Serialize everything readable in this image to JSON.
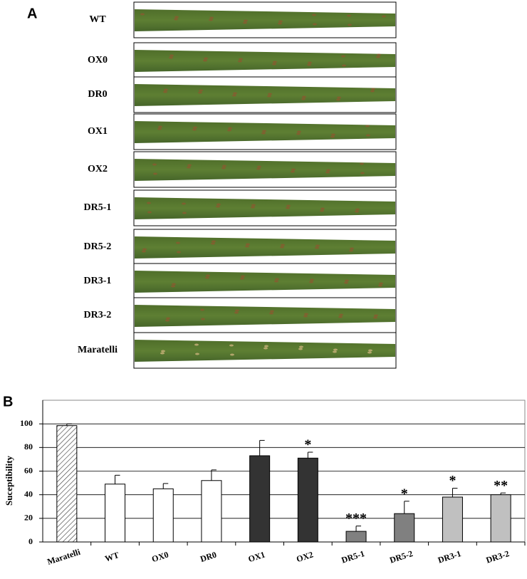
{
  "panel_a": {
    "label": "A",
    "rows": [
      "WT",
      "OX0",
      "DR0",
      "OX1",
      "OX2",
      "DR5-1",
      "DR5-2",
      "DR3-1",
      "DR3-2",
      "Maratelli"
    ]
  },
  "chart_data": {
    "type": "bar",
    "panel_label": "B",
    "y_label": "Suceptibility",
    "categories": [
      "Maratelli",
      "WT",
      "OX0",
      "DR0",
      "OX1",
      "OX2",
      "DR5-1",
      "DR5-2",
      "DR3-1",
      "DR3-2"
    ],
    "values": [
      98.5,
      49,
      45,
      52,
      73,
      71,
      9,
      24,
      38,
      40
    ],
    "errors": [
      1.5,
      7.5,
      4.5,
      9,
      13,
      5,
      4.5,
      10.5,
      7.5,
      1.5
    ],
    "annotations": [
      null,
      null,
      null,
      null,
      null,
      "*",
      "***",
      "*",
      "*",
      "**"
    ],
    "colors": [
      "#ffffff",
      "#ffffff",
      "#ffffff",
      "#ffffff",
      "#333333",
      "#333333",
      "#808080",
      "#808080",
      "#c0c0c0",
      "#c0c0c0"
    ],
    "hatch": [
      true,
      false,
      false,
      false,
      false,
      false,
      false,
      false,
      false,
      false
    ],
    "ylim": [
      0,
      120
    ],
    "yticks": [
      0,
      20,
      40,
      60,
      80,
      100
    ],
    "grid": true
  }
}
